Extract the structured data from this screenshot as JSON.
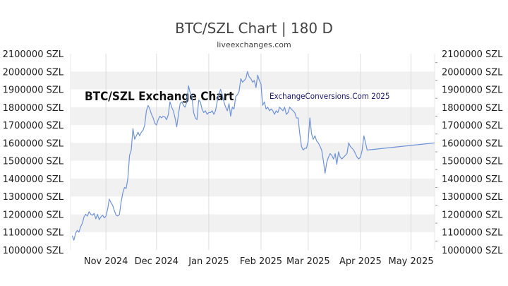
{
  "header": {
    "title": "BTC/SZL Chart | 180 D",
    "subtitle": "liveexchanges.com"
  },
  "watermark": {
    "left": "BTC/SZL Exchange Chart",
    "right": "ExchangeConversions.Com 2025"
  },
  "chart_data": {
    "type": "line",
    "title": "BTC/SZL Chart | 180 D",
    "xlabel": "",
    "ylabel": "",
    "ylim": [
      1000000,
      2100000
    ],
    "y_ticks": [
      1000000,
      1100000,
      1200000,
      1300000,
      1400000,
      1500000,
      1600000,
      1700000,
      1800000,
      1900000,
      2000000,
      2100000
    ],
    "y_tick_labels": [
      "1000000 SZL",
      "1100000 SZL",
      "1200000 SZL",
      "1300000 SZL",
      "1400000 SZL",
      "1500000 SZL",
      "1600000 SZL",
      "1700000 SZL",
      "1800000 SZL",
      "1900000 SZL",
      "2000000 SZL",
      "2100000 SZL"
    ],
    "x_range": [
      "2024-10-11",
      "2025-05-15"
    ],
    "x_ticks": [
      {
        "date": "2024-11-01",
        "label": "Nov 2024"
      },
      {
        "date": "2024-12-01",
        "label": "Dec 2024"
      },
      {
        "date": "2025-01-01",
        "label": "Jan 2025"
      },
      {
        "date": "2025-02-01",
        "label": "Feb 2025"
      },
      {
        "date": "2025-03-01",
        "label": "Mar 2025"
      },
      {
        "date": "2025-04-01",
        "label": "Apr 2025"
      },
      {
        "date": "2025-05-01",
        "label": "May 2025"
      }
    ],
    "grid": "horizontal bands",
    "line_color": "#6f93d6",
    "band_color": "#f1f1f1",
    "series": [
      {
        "points": [
          [
            "2024-10-12",
            1080000
          ],
          [
            "2024-10-13",
            1055000
          ],
          [
            "2024-10-14",
            1095000
          ],
          [
            "2024-10-15",
            1110000
          ],
          [
            "2024-10-16",
            1100000
          ],
          [
            "2024-10-17",
            1130000
          ],
          [
            "2024-10-18",
            1150000
          ],
          [
            "2024-10-19",
            1185000
          ],
          [
            "2024-10-20",
            1200000
          ],
          [
            "2024-10-21",
            1190000
          ],
          [
            "2024-10-22",
            1215000
          ],
          [
            "2024-10-23",
            1200000
          ],
          [
            "2024-10-24",
            1195000
          ],
          [
            "2024-10-25",
            1205000
          ],
          [
            "2024-10-26",
            1175000
          ],
          [
            "2024-10-27",
            1200000
          ],
          [
            "2024-10-28",
            1170000
          ],
          [
            "2024-10-29",
            1185000
          ],
          [
            "2024-10-30",
            1195000
          ],
          [
            "2024-10-31",
            1180000
          ],
          [
            "2024-11-01",
            1190000
          ],
          [
            "2024-11-02",
            1230000
          ],
          [
            "2024-11-03",
            1285000
          ],
          [
            "2024-11-04",
            1265000
          ],
          [
            "2024-11-05",
            1250000
          ],
          [
            "2024-11-06",
            1220000
          ],
          [
            "2024-11-07",
            1195000
          ],
          [
            "2024-11-08",
            1190000
          ],
          [
            "2024-11-09",
            1200000
          ],
          [
            "2024-11-10",
            1270000
          ],
          [
            "2024-11-11",
            1320000
          ],
          [
            "2024-11-12",
            1350000
          ],
          [
            "2024-11-13",
            1345000
          ],
          [
            "2024-11-14",
            1400000
          ],
          [
            "2024-11-15",
            1530000
          ],
          [
            "2024-11-16",
            1560000
          ],
          [
            "2024-11-17",
            1680000
          ],
          [
            "2024-11-18",
            1620000
          ],
          [
            "2024-11-19",
            1640000
          ],
          [
            "2024-11-20",
            1660000
          ],
          [
            "2024-11-21",
            1640000
          ],
          [
            "2024-11-22",
            1660000
          ],
          [
            "2024-11-23",
            1670000
          ],
          [
            "2024-11-24",
            1700000
          ],
          [
            "2024-11-25",
            1780000
          ],
          [
            "2024-11-26",
            1810000
          ],
          [
            "2024-11-27",
            1790000
          ],
          [
            "2024-11-28",
            1760000
          ],
          [
            "2024-11-29",
            1740000
          ],
          [
            "2024-11-30",
            1710000
          ],
          [
            "2024-12-01",
            1700000
          ],
          [
            "2024-12-02",
            1730000
          ],
          [
            "2024-12-03",
            1750000
          ],
          [
            "2024-12-04",
            1740000
          ],
          [
            "2024-12-05",
            1750000
          ],
          [
            "2024-12-06",
            1745000
          ],
          [
            "2024-12-07",
            1730000
          ],
          [
            "2024-12-08",
            1760000
          ],
          [
            "2024-12-09",
            1830000
          ],
          [
            "2024-12-10",
            1800000
          ],
          [
            "2024-12-11",
            1780000
          ],
          [
            "2024-12-12",
            1740000
          ],
          [
            "2024-12-13",
            1690000
          ],
          [
            "2024-12-14",
            1760000
          ],
          [
            "2024-12-15",
            1820000
          ],
          [
            "2024-12-16",
            1830000
          ],
          [
            "2024-12-17",
            1810000
          ],
          [
            "2024-12-18",
            1800000
          ],
          [
            "2024-12-19",
            1830000
          ],
          [
            "2024-12-20",
            1920000
          ],
          [
            "2024-12-21",
            1880000
          ],
          [
            "2024-12-22",
            1860000
          ],
          [
            "2024-12-23",
            1770000
          ],
          [
            "2024-12-24",
            1740000
          ],
          [
            "2024-12-25",
            1730000
          ],
          [
            "2024-12-26",
            1840000
          ],
          [
            "2024-12-27",
            1830000
          ],
          [
            "2024-12-28",
            1790000
          ],
          [
            "2024-12-29",
            1770000
          ],
          [
            "2024-12-30",
            1780000
          ],
          [
            "2024-12-31",
            1760000
          ],
          [
            "2025-01-01",
            1770000
          ],
          [
            "2025-01-02",
            1770000
          ],
          [
            "2025-01-03",
            1780000
          ],
          [
            "2025-01-04",
            1760000
          ],
          [
            "2025-01-05",
            1780000
          ],
          [
            "2025-01-06",
            1830000
          ],
          [
            "2025-01-07",
            1870000
          ],
          [
            "2025-01-08",
            1900000
          ],
          [
            "2025-01-09",
            1870000
          ],
          [
            "2025-01-10",
            1830000
          ],
          [
            "2025-01-11",
            1800000
          ],
          [
            "2025-01-12",
            1780000
          ],
          [
            "2025-01-13",
            1820000
          ],
          [
            "2025-01-14",
            1750000
          ],
          [
            "2025-01-15",
            1800000
          ],
          [
            "2025-01-16",
            1790000
          ],
          [
            "2025-01-17",
            1860000
          ],
          [
            "2025-01-18",
            1870000
          ],
          [
            "2025-01-19",
            1890000
          ],
          [
            "2025-01-20",
            1960000
          ],
          [
            "2025-01-21",
            1940000
          ],
          [
            "2025-01-22",
            1950000
          ],
          [
            "2025-01-23",
            1960000
          ],
          [
            "2025-01-24",
            2000000
          ],
          [
            "2025-01-25",
            1970000
          ],
          [
            "2025-01-26",
            1960000
          ],
          [
            "2025-01-27",
            1940000
          ],
          [
            "2025-01-28",
            1950000
          ],
          [
            "2025-01-29",
            1910000
          ],
          [
            "2025-01-30",
            1980000
          ],
          [
            "2025-01-31",
            1950000
          ],
          [
            "2025-02-01",
            1930000
          ],
          [
            "2025-02-02",
            1810000
          ],
          [
            "2025-02-03",
            1830000
          ],
          [
            "2025-02-04",
            1790000
          ],
          [
            "2025-02-05",
            1800000
          ],
          [
            "2025-02-06",
            1780000
          ],
          [
            "2025-02-07",
            1790000
          ],
          [
            "2025-02-08",
            1780000
          ],
          [
            "2025-02-09",
            1760000
          ],
          [
            "2025-02-10",
            1780000
          ],
          [
            "2025-02-11",
            1770000
          ],
          [
            "2025-02-12",
            1800000
          ],
          [
            "2025-02-13",
            1790000
          ],
          [
            "2025-02-14",
            1780000
          ],
          [
            "2025-02-15",
            1800000
          ],
          [
            "2025-02-16",
            1760000
          ],
          [
            "2025-02-17",
            1770000
          ],
          [
            "2025-02-18",
            1800000
          ],
          [
            "2025-02-19",
            1790000
          ],
          [
            "2025-02-20",
            1780000
          ],
          [
            "2025-02-21",
            1770000
          ],
          [
            "2025-02-22",
            1740000
          ],
          [
            "2025-02-23",
            1740000
          ],
          [
            "2025-02-24",
            1650000
          ],
          [
            "2025-02-25",
            1580000
          ],
          [
            "2025-02-26",
            1560000
          ],
          [
            "2025-02-27",
            1570000
          ],
          [
            "2025-02-28",
            1570000
          ],
          [
            "2025-03-01",
            1610000
          ],
          [
            "2025-03-02",
            1740000
          ],
          [
            "2025-03-03",
            1650000
          ],
          [
            "2025-03-04",
            1620000
          ],
          [
            "2025-03-05",
            1640000
          ],
          [
            "2025-03-06",
            1610000
          ],
          [
            "2025-03-07",
            1600000
          ],
          [
            "2025-03-08",
            1580000
          ],
          [
            "2025-03-09",
            1560000
          ],
          [
            "2025-03-10",
            1500000
          ],
          [
            "2025-03-11",
            1430000
          ],
          [
            "2025-03-12",
            1490000
          ],
          [
            "2025-03-13",
            1520000
          ],
          [
            "2025-03-14",
            1540000
          ],
          [
            "2025-03-15",
            1530000
          ],
          [
            "2025-03-16",
            1510000
          ],
          [
            "2025-03-17",
            1540000
          ],
          [
            "2025-03-18",
            1480000
          ],
          [
            "2025-03-19",
            1550000
          ],
          [
            "2025-03-20",
            1520000
          ],
          [
            "2025-03-21",
            1510000
          ],
          [
            "2025-03-22",
            1520000
          ],
          [
            "2025-03-23",
            1530000
          ],
          [
            "2025-03-24",
            1540000
          ],
          [
            "2025-03-25",
            1600000
          ],
          [
            "2025-03-26",
            1580000
          ],
          [
            "2025-03-27",
            1570000
          ],
          [
            "2025-03-28",
            1560000
          ],
          [
            "2025-03-29",
            1540000
          ],
          [
            "2025-03-30",
            1520000
          ],
          [
            "2025-03-31",
            1510000
          ],
          [
            "2025-04-01",
            1520000
          ],
          [
            "2025-04-02",
            1560000
          ],
          [
            "2025-04-03",
            1640000
          ],
          [
            "2025-04-04",
            1600000
          ],
          [
            "2025-04-05",
            1560000
          ],
          [
            "2025-05-15",
            1600000
          ]
        ]
      }
    ]
  }
}
